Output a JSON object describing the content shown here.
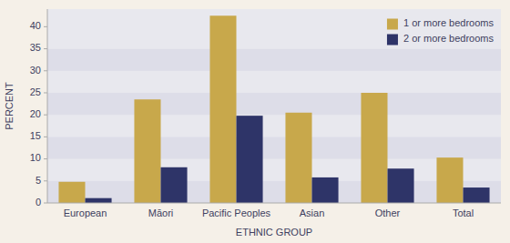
{
  "chart_data": {
    "type": "bar",
    "categories": [
      "European",
      "Māori",
      "Pacific Peoples",
      "Asian",
      "Other",
      "Total"
    ],
    "series": [
      {
        "name": "1 or more bedrooms",
        "color": "#C8A84B",
        "values": [
          4.8,
          23.5,
          42.5,
          20.5,
          25.0,
          10.3
        ]
      },
      {
        "name": "2 or more bedrooms",
        "color": "#2E3468",
        "values": [
          1.1,
          8.1,
          19.8,
          5.8,
          7.8,
          3.5
        ]
      }
    ],
    "x_label": "ETHNIC GROUP",
    "y_label": "PERCENT",
    "ylim": [
      0,
      44
    ],
    "yticks": [
      0,
      5,
      10,
      15,
      20,
      25,
      30,
      35,
      40
    ],
    "legend": "upper right"
  }
}
